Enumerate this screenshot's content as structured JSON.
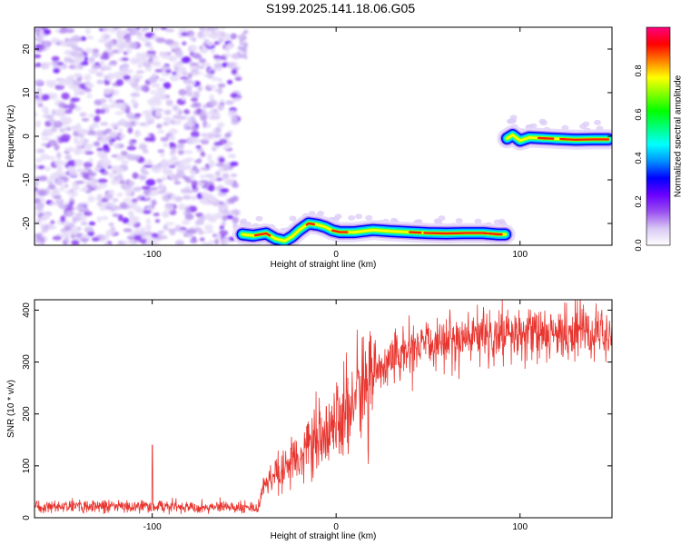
{
  "title": "S199.2025.141.18.06.G05",
  "chart_data": [
    {
      "type": "heatmap",
      "xlabel": "Height of straight line (km)",
      "ylabel": "Frequency (Hz)",
      "xlim": [
        -164,
        150
      ],
      "ylim": [
        -25,
        25
      ],
      "xticks": [
        -100,
        0,
        100
      ],
      "yticks": [
        -20,
        -10,
        0,
        10,
        20
      ],
      "colorbar": {
        "label": "Normalized spectral amplitude",
        "range": [
          0,
          1
        ],
        "ticks": [
          "0.0",
          "0.2",
          "0.4",
          "0.6",
          "0.8"
        ],
        "colors": [
          "#ffffff",
          "#d8c8f4",
          "#9a50f0",
          "#6a00ff",
          "#0000ff",
          "#0090ff",
          "#00ffff",
          "#00ff80",
          "#00ff00",
          "#80ff00",
          "#ffff00",
          "#ff8000",
          "#ff0000",
          "#ff0080"
        ]
      },
      "noise_region": {
        "x": [
          -164,
          -53
        ],
        "y": [
          -25,
          25
        ]
      },
      "ridge": [
        [
          -51,
          -22.5
        ],
        [
          -45,
          -22.8
        ],
        [
          -38,
          -22.3
        ],
        [
          -33,
          -23.5
        ],
        [
          -28,
          -24
        ],
        [
          -24,
          -23
        ],
        [
          -20,
          -21.5
        ],
        [
          -15,
          -20
        ],
        [
          -10,
          -20.3
        ],
        [
          -6,
          -20.8
        ],
        [
          -2,
          -21.6
        ],
        [
          2,
          -22
        ],
        [
          10,
          -22
        ],
        [
          20,
          -21.5
        ],
        [
          30,
          -21.8
        ],
        [
          40,
          -22
        ],
        [
          50,
          -22.2
        ],
        [
          60,
          -22.3
        ],
        [
          70,
          -22.2
        ],
        [
          80,
          -22.2
        ],
        [
          88,
          -22.5
        ],
        [
          92,
          -22.5
        ]
      ],
      "ridge2": [
        [
          93,
          -0.5
        ],
        [
          96,
          0.3
        ],
        [
          100,
          -1
        ],
        [
          105,
          -0.3
        ],
        [
          110,
          -0.4
        ],
        [
          120,
          -0.6
        ],
        [
          130,
          -0.8
        ],
        [
          140,
          -0.7
        ],
        [
          148,
          -0.7
        ]
      ]
    },
    {
      "type": "line",
      "xlabel": "Height of straight line (km)",
      "ylabel": "SNR (10 * v/v)",
      "xlim": [
        -164,
        150
      ],
      "ylim": [
        0,
        420
      ],
      "xticks": [
        -100,
        0,
        100
      ],
      "yticks": [
        0,
        100,
        200,
        300,
        400
      ],
      "color": "#e8352f",
      "profile": [
        [
          -164,
          22
        ],
        [
          -100,
          22
        ],
        [
          -42,
          20
        ],
        [
          -40,
          60
        ],
        [
          -30,
          100
        ],
        [
          -20,
          120
        ],
        [
          -10,
          150
        ],
        [
          0,
          175
        ],
        [
          10,
          230
        ],
        [
          20,
          280
        ],
        [
          30,
          305
        ],
        [
          40,
          320
        ],
        [
          50,
          330
        ],
        [
          60,
          340
        ],
        [
          70,
          345
        ],
        [
          80,
          350
        ],
        [
          100,
          352
        ],
        [
          120,
          355
        ],
        [
          150,
          357
        ]
      ],
      "spike": {
        "x": -100,
        "y": 140
      }
    }
  ]
}
